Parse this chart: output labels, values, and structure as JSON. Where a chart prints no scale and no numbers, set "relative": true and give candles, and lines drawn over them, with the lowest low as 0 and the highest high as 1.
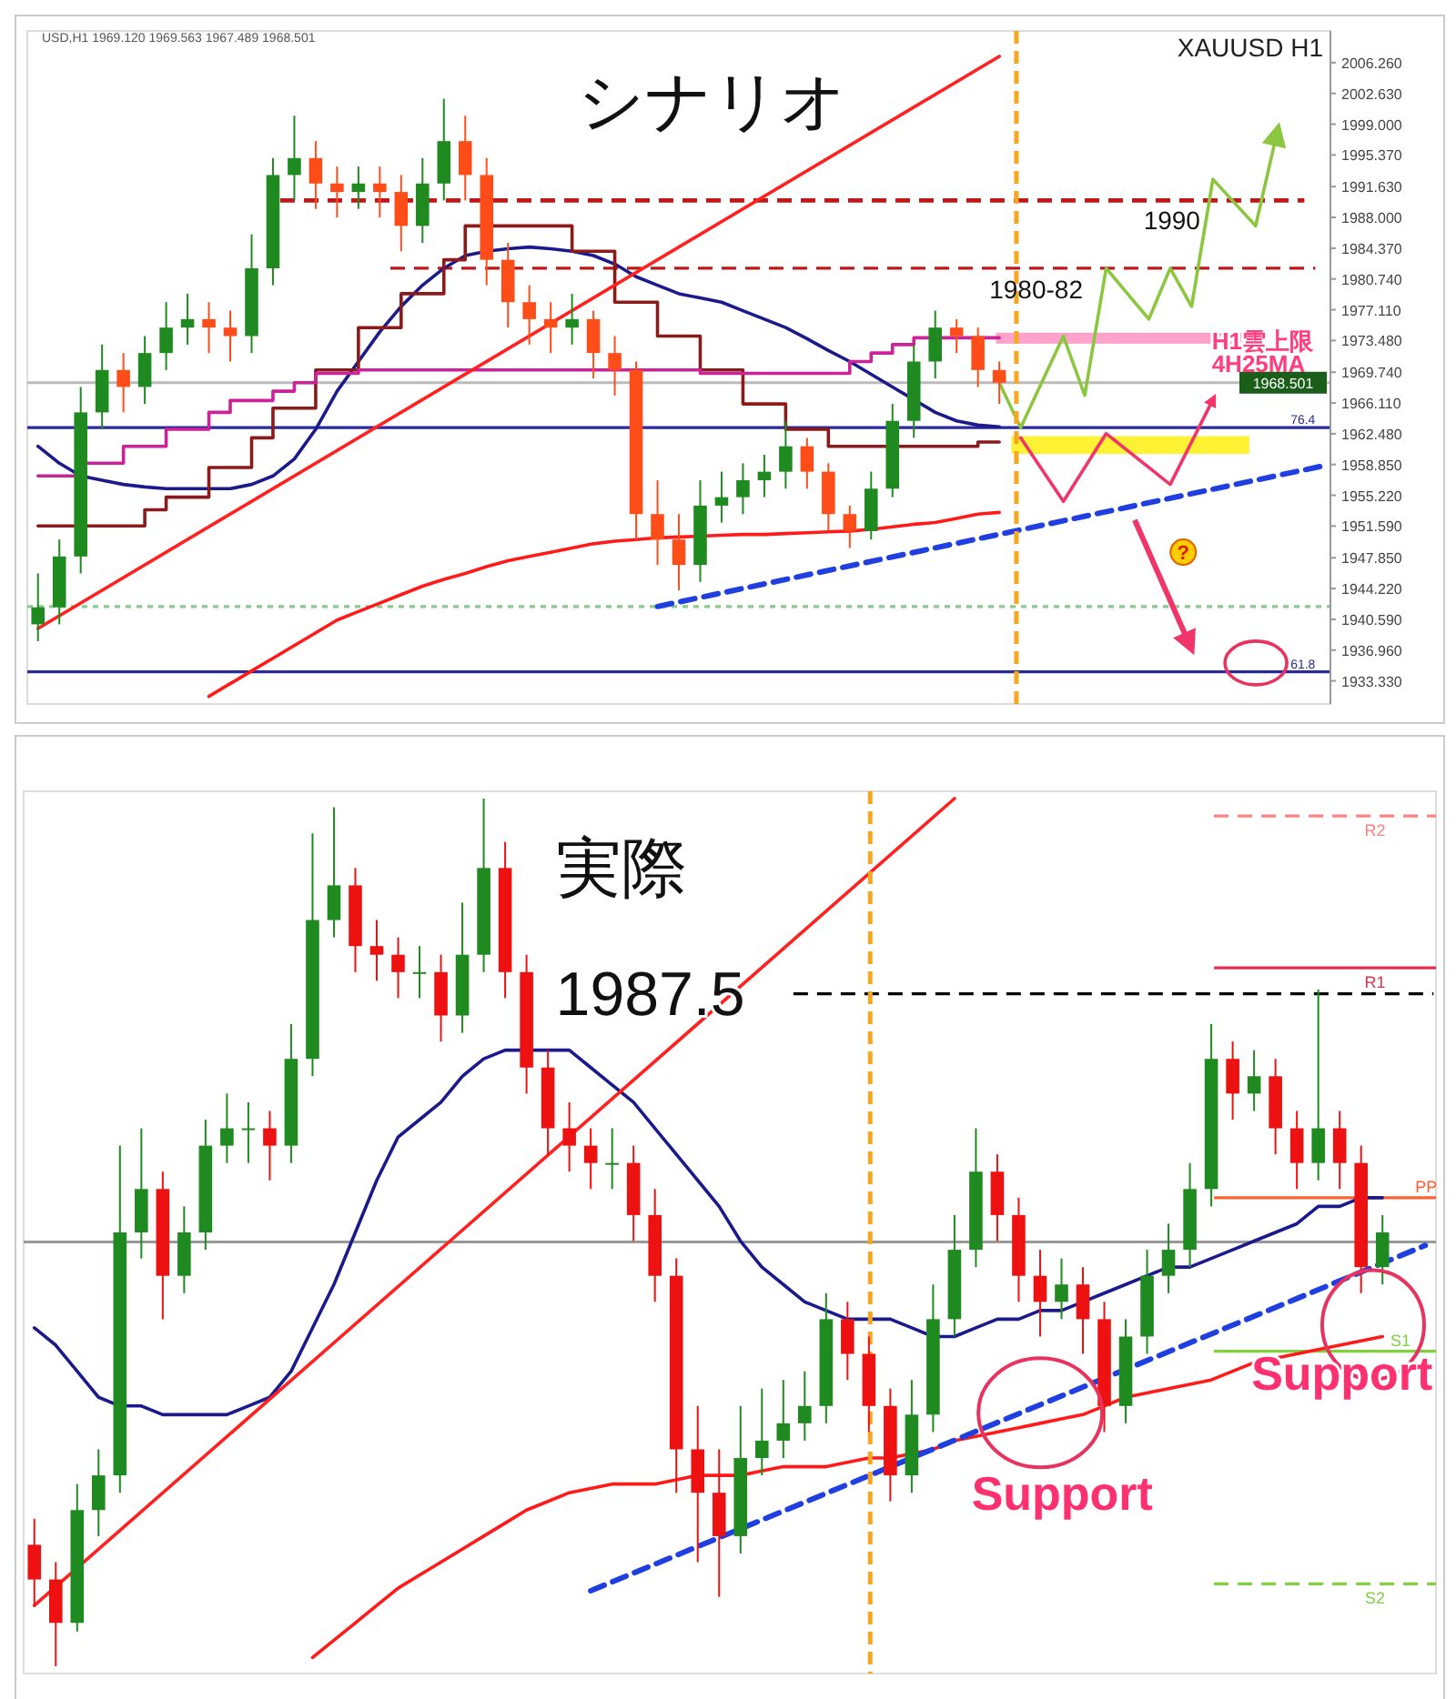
{
  "chart_data": [
    {
      "type": "candlestick",
      "title": "シナリオ",
      "subtitle": "XAUUSD H1",
      "categories": [
        null,
        null,
        null,
        null,
        null,
        null,
        null,
        null,
        null,
        null,
        null,
        null,
        null,
        null,
        null,
        null,
        null,
        null,
        null,
        null,
        null,
        null,
        null,
        null,
        null,
        null,
        null,
        null,
        null,
        null,
        null,
        null,
        null,
        null,
        null,
        null,
        null,
        null,
        null,
        null,
        null,
        null,
        null,
        null,
        null,
        null,
        null,
        null,
        null,
        null,
        null,
        null,
        null,
        null,
        null,
        null,
        null,
        null,
        null,
        null,
        null
      ],
      "ohlc": [
        [
          1940,
          1946,
          1938,
          1942
        ],
        [
          1942,
          1950,
          1940,
          1948
        ],
        [
          1948,
          1968,
          1946,
          1965
        ],
        [
          1965,
          1973,
          1963,
          1970
        ],
        [
          1970,
          1972,
          1965,
          1968
        ],
        [
          1968,
          1974,
          1966,
          1972
        ],
        [
          1972,
          1978,
          1970,
          1975
        ],
        [
          1975,
          1979,
          1973,
          1976
        ],
        [
          1976,
          1978,
          1972,
          1975
        ],
        [
          1975,
          1977,
          1971,
          1974
        ],
        [
          1974,
          1986,
          1972,
          1982
        ],
        [
          1982,
          1995,
          1980,
          1993
        ],
        [
          1993,
          2000,
          1990,
          1995
        ],
        [
          1995,
          1997,
          1989,
          1992
        ],
        [
          1992,
          1994,
          1988,
          1991
        ],
        [
          1991,
          1994,
          1989,
          1992
        ],
        [
          1992,
          1994,
          1988,
          1991
        ],
        [
          1991,
          1993,
          1984,
          1987
        ],
        [
          1987,
          1995,
          1985,
          1992
        ],
        [
          1992,
          2002,
          1990,
          1997
        ],
        [
          1997,
          2000,
          1990,
          1993
        ],
        [
          1993,
          1995,
          1980,
          1983
        ],
        [
          1983,
          1985,
          1975,
          1978
        ],
        [
          1978,
          1980,
          1973,
          1976
        ],
        [
          1976,
          1978,
          1972,
          1975
        ],
        [
          1975,
          1979,
          1973,
          1976
        ],
        [
          1976,
          1977,
          1969,
          1972
        ],
        [
          1972,
          1974,
          1967,
          1970
        ],
        [
          1970,
          1971,
          1950,
          1953
        ],
        [
          1953,
          1957,
          1947,
          1950
        ],
        [
          1950,
          1953,
          1944,
          1947
        ],
        [
          1947,
          1957,
          1945,
          1954
        ],
        [
          1954,
          1958,
          1952,
          1955
        ],
        [
          1955,
          1959,
          1953,
          1957
        ],
        [
          1957,
          1960,
          1955,
          1958
        ],
        [
          1958,
          1964,
          1956,
          1961
        ],
        [
          1961,
          1962,
          1956,
          1958
        ],
        [
          1958,
          1959,
          1951,
          1953
        ],
        [
          1953,
          1954,
          1949,
          1951
        ],
        [
          1951,
          1958,
          1950,
          1956
        ],
        [
          1956,
          1966,
          1955,
          1964
        ],
        [
          1964,
          1973,
          1962,
          1971
        ],
        [
          1971,
          1977,
          1969,
          1975
        ],
        [
          1975,
          1976,
          1972,
          1974
        ],
        [
          1974,
          1975,
          1968,
          1970
        ],
        [
          1970,
          1971,
          1966,
          1968.5
        ],
        null,
        null,
        null,
        null,
        null,
        null,
        null,
        null,
        null,
        null,
        null,
        null,
        null,
        null,
        null
      ],
      "ylim": [
        1930.6,
        2010
      ],
      "yticks": [
        {
          "value": 2006.26,
          "label": "2006.260"
        },
        {
          "value": 2002.63,
          "label": "2002.630"
        },
        {
          "value": 1999,
          "label": "1999.000"
        },
        {
          "value": 1995.37,
          "label": "1995.370"
        },
        {
          "value": 1991.63,
          "label": "1991.630"
        },
        {
          "value": 1988,
          "label": "1988.000"
        },
        {
          "value": 1984.37,
          "label": "1984.370"
        },
        {
          "value": 1980.74,
          "label": "1980.740"
        },
        {
          "value": 1977.11,
          "label": "1977.110"
        },
        {
          "value": 1973.48,
          "label": "1973.480"
        },
        {
          "value": 1969.74,
          "label": "1969.740"
        },
        {
          "value": 1966.11,
          "label": "1966.110"
        },
        {
          "value": 1962.48,
          "label": "1962.480"
        },
        {
          "value": 1958.85,
          "label": "1958.850"
        },
        {
          "value": 1955.22,
          "label": "1955.220"
        },
        {
          "value": 1951.59,
          "label": "1951.590"
        },
        {
          "value": 1947.85,
          "label": "1947.850"
        },
        {
          "value": 1944.22,
          "label": "1944.220"
        },
        {
          "value": 1940.59,
          "label": "1940.590"
        },
        {
          "value": 1936.96,
          "label": "1936.960"
        },
        {
          "value": 1933.33,
          "label": "1933.330"
        }
      ],
      "tick_labels": "y",
      "series": [
        {
          "type": "line",
          "color": "#ff1a1a",
          "values": [
            null,
            null,
            null,
            null,
            null,
            null,
            null,
            null,
            1931.5,
            1933,
            1934.5,
            1936,
            1937.5,
            1939,
            1940.5,
            1941.5,
            1942.5,
            1943.5,
            1944.5,
            1945.3,
            1946,
            1946.8,
            1947.5,
            1948,
            1948.5,
            1949,
            1949.5,
            1949.8,
            1950,
            1950.2,
            1950.3,
            1950.4,
            1950.5,
            1950.6,
            1950.6,
            1950.7,
            1950.8,
            1950.9,
            1951,
            1951.2,
            1951.5,
            1951.8,
            1952,
            1952.5,
            1953,
            1953.2,
            null,
            null,
            null,
            null,
            null,
            null,
            null,
            null,
            null,
            null,
            null,
            null,
            null,
            null,
            null
          ]
        },
        {
          "type": "line",
          "color": "#1a1a8c",
          "values": [
            1961,
            1959,
            1957.5,
            1957,
            1956.5,
            1956.2,
            1956,
            1956,
            1956,
            1956,
            1956.5,
            1957.5,
            1959.5,
            1963,
            1967.5,
            1971,
            1974.5,
            1977.5,
            1980,
            1982,
            1983.5,
            1984,
            1984.3,
            1984.5,
            1984.3,
            1984,
            1983.5,
            1982.5,
            1981,
            1980,
            1979,
            1978.5,
            1978,
            1977,
            1976,
            1975,
            1973.7,
            1972.3,
            1971,
            1969.5,
            1968,
            1966.5,
            1965,
            1964,
            1963.5,
            1963.3,
            null,
            null,
            null,
            null,
            null,
            null,
            null,
            null,
            null,
            null,
            null,
            null,
            null,
            null,
            null
          ]
        },
        {
          "type": "step",
          "color": "#8b1a1a",
          "values": [
            1951.6,
            1951.6,
            1951.6,
            1951.6,
            1951.6,
            1953.5,
            1955,
            1955,
            1958.5,
            1958.5,
            1962,
            1965.5,
            1965.5,
            1970,
            1970,
            1975,
            1975,
            1979,
            1979,
            1983,
            1987,
            1987,
            1987,
            1987,
            1987,
            1984,
            1984,
            1978,
            1978,
            1974,
            1974,
            1970,
            1970,
            1966,
            1966,
            1963,
            1963,
            1961,
            1961,
            1961,
            1961,
            1961,
            1961,
            1961,
            1961.5,
            1961.5,
            null,
            null,
            null,
            null,
            null,
            null,
            null,
            null,
            null,
            null,
            null,
            null,
            null,
            null,
            null
          ]
        },
        {
          "type": "step",
          "color": "#cc2299",
          "values": [
            1957.5,
            1957.5,
            1959,
            1959,
            1961,
            1961,
            1963,
            1963,
            1965,
            1966.4,
            1966.4,
            1967.5,
            1968.5,
            1969.6,
            1969.6,
            1970,
            1970,
            1970,
            1970,
            1970,
            1970,
            1970,
            1970,
            1970,
            1970,
            1970,
            1970,
            1970,
            1970,
            1970,
            1970,
            1969.6,
            1969.6,
            1969.6,
            1969.6,
            1969.6,
            1969.6,
            1969.6,
            1971,
            1972,
            1973,
            1973.8,
            1973.8,
            1973.8,
            1973.8,
            1973.8,
            null,
            null,
            null,
            null,
            null,
            null,
            null,
            null,
            null,
            null,
            null,
            null,
            null,
            null,
            null
          ]
        },
        {
          "type": "line",
          "color": "#1f3fe0",
          "line_style": "dashed",
          "values": [
            null,
            null,
            null,
            null,
            null,
            null,
            null,
            null,
            null,
            null,
            null,
            null,
            null,
            null,
            null,
            null,
            null,
            null,
            null,
            null,
            null,
            null,
            null,
            null,
            null,
            null,
            null,
            null,
            null,
            1942.1,
            null,
            null,
            null,
            null,
            null,
            null,
            null,
            null,
            null,
            null,
            null,
            null,
            null,
            null,
            null,
            null,
            null,
            null,
            null,
            null,
            null,
            null,
            null,
            null,
            null,
            null,
            null,
            null,
            null,
            null,
            1958.6
          ]
        },
        {
          "type": "line",
          "color": "#ff2020",
          "values": [
            1939.5,
            null,
            null,
            null,
            null,
            null,
            null,
            null,
            null,
            null,
            null,
            null,
            null,
            null,
            null,
            null,
            null,
            null,
            null,
            null,
            null,
            null,
            null,
            null,
            null,
            null,
            null,
            null,
            null,
            null,
            null,
            null,
            null,
            null,
            null,
            null,
            null,
            null,
            null,
            null,
            null,
            null,
            null,
            null,
            null,
            2007,
            null,
            null,
            null,
            null,
            null,
            null,
            null,
            null,
            null,
            null,
            null,
            null,
            null,
            null,
            null
          ]
        },
        {
          "type": "line",
          "color": "#8cc63f",
          "values": [
            null,
            null,
            null,
            null,
            null,
            null,
            null,
            null,
            null,
            null,
            null,
            null,
            null,
            null,
            null,
            null,
            null,
            null,
            null,
            null,
            null,
            null,
            null,
            null,
            null,
            null,
            null,
            null,
            null,
            null,
            null,
            null,
            null,
            null,
            null,
            null,
            null,
            null,
            null,
            null,
            null,
            null,
            null,
            null,
            null,
            1968.5,
            1963.2,
            null,
            1974,
            1967,
            1982,
            null,
            1976,
            1982,
            1977.5,
            1992.5,
            null,
            1987,
            1998,
            null,
            null
          ]
        },
        {
          "type": "line",
          "color": "#f0356b",
          "values": [
            null,
            null,
            null,
            null,
            null,
            null,
            null,
            null,
            null,
            null,
            null,
            null,
            null,
            null,
            null,
            null,
            null,
            null,
            null,
            null,
            null,
            null,
            null,
            null,
            null,
            null,
            null,
            null,
            null,
            null,
            null,
            null,
            null,
            null,
            null,
            null,
            null,
            null,
            null,
            null,
            null,
            null,
            null,
            null,
            null,
            null,
            1962,
            null,
            1954.5,
            null,
            1962.5,
            null,
            null,
            1956.5,
            null,
            1966.5,
            null,
            null,
            null,
            null,
            null
          ]
        }
      ],
      "ref_lines": [
        {
          "axis": "y",
          "value": 1990,
          "label": "1990",
          "color": "#c01818",
          "line_style": "dashed"
        },
        {
          "axis": "y",
          "value": 1982,
          "color": "#c01818",
          "line_style": "dashed"
        },
        {
          "axis": "y",
          "value": 1963.2,
          "color": "#2a2a9a"
        },
        {
          "axis": "y",
          "value": 1934.4,
          "color": "#2a2a9a"
        },
        {
          "axis": "y",
          "value": 1942.1,
          "color": "#88cc88",
          "line_style": "dotted"
        },
        {
          "axis": "y",
          "value": 1968.501,
          "label": "1968.501",
          "color": "#bbbbbb"
        }
      ],
      "bands": [
        {
          "axis": "y",
          "from": 1960.1,
          "to": 1962.2,
          "color": "#ffee00"
        },
        {
          "axis": "y",
          "from": 1973.1,
          "to": 1974.4,
          "label": "H1雲上限",
          "color": "#ff8cc0"
        }
      ],
      "annotations": [
        "4H25MA",
        "USD,H1 1969.120 1969.563 1967.489 1968.501",
        "1980-82",
        "76.4",
        "61.8",
        "?"
      ]
    },
    {
      "type": "candlestick",
      "title": "実際",
      "relative": true,
      "categories": [
        null,
        null,
        null,
        null,
        null,
        null,
        null,
        null,
        null,
        null,
        null,
        null,
        null,
        null,
        null,
        null,
        null,
        null,
        null,
        null,
        null,
        null,
        null,
        null,
        null,
        null,
        null,
        null,
        null,
        null,
        null,
        null,
        null,
        null,
        null,
        null,
        null,
        null,
        null,
        null,
        null,
        null,
        null,
        null,
        null,
        null,
        null,
        null,
        null,
        null,
        null,
        null,
        null,
        null,
        null,
        null,
        null,
        null,
        null,
        null,
        null,
        null,
        null,
        null,
        null,
        null
      ],
      "ohlc": [
        [
          0.14,
          0.17,
          0.07,
          0.1
        ],
        [
          0.1,
          0.12,
          0.0,
          0.05
        ],
        [
          0.05,
          0.21,
          0.04,
          0.18
        ],
        [
          0.18,
          0.25,
          0.15,
          0.22
        ],
        [
          0.22,
          0.6,
          0.2,
          0.5
        ],
        [
          0.5,
          0.62,
          0.47,
          0.55
        ],
        [
          0.55,
          0.57,
          0.4,
          0.45
        ],
        [
          0.45,
          0.53,
          0.43,
          0.5
        ],
        [
          0.5,
          0.63,
          0.48,
          0.6
        ],
        [
          0.6,
          0.66,
          0.58,
          0.62
        ],
        [
          0.62,
          0.65,
          0.58,
          0.62
        ],
        [
          0.62,
          0.64,
          0.56,
          0.6
        ],
        [
          0.6,
          0.74,
          0.58,
          0.7
        ],
        [
          0.7,
          0.96,
          0.68,
          0.86
        ],
        [
          0.86,
          0.99,
          0.84,
          0.9
        ],
        [
          0.9,
          0.92,
          0.8,
          0.83
        ],
        [
          0.83,
          0.86,
          0.79,
          0.82
        ],
        [
          0.82,
          0.84,
          0.77,
          0.8
        ],
        [
          0.8,
          0.83,
          0.77,
          0.8
        ],
        [
          0.8,
          0.82,
          0.72,
          0.75
        ],
        [
          0.75,
          0.88,
          0.73,
          0.82
        ],
        [
          0.82,
          1.0,
          0.8,
          0.92
        ],
        [
          0.92,
          0.95,
          0.77,
          0.8
        ],
        [
          0.8,
          0.82,
          0.66,
          0.69
        ],
        [
          0.69,
          0.71,
          0.59,
          0.62
        ],
        [
          0.62,
          0.65,
          0.57,
          0.6
        ],
        [
          0.6,
          0.62,
          0.55,
          0.58
        ],
        [
          0.58,
          0.62,
          0.55,
          0.58
        ],
        [
          0.58,
          0.6,
          0.49,
          0.52
        ],
        [
          0.52,
          0.55,
          0.42,
          0.45
        ],
        [
          0.45,
          0.47,
          0.2,
          0.25
        ],
        [
          0.25,
          0.3,
          0.12,
          0.2
        ],
        [
          0.2,
          0.25,
          0.08,
          0.15
        ],
        [
          0.15,
          0.3,
          0.13,
          0.24
        ],
        [
          0.24,
          0.32,
          0.22,
          0.26
        ],
        [
          0.26,
          0.33,
          0.24,
          0.28
        ],
        [
          0.28,
          0.34,
          0.26,
          0.3
        ],
        [
          0.3,
          0.43,
          0.28,
          0.4
        ],
        [
          0.4,
          0.42,
          0.33,
          0.36
        ],
        [
          0.36,
          0.38,
          0.27,
          0.3
        ],
        [
          0.3,
          0.32,
          0.19,
          0.22
        ],
        [
          0.22,
          0.33,
          0.2,
          0.29
        ],
        [
          0.29,
          0.44,
          0.27,
          0.4
        ],
        [
          0.4,
          0.52,
          0.38,
          0.48
        ],
        [
          0.48,
          0.62,
          0.46,
          0.57
        ],
        [
          0.57,
          0.59,
          0.49,
          0.52
        ],
        [
          0.52,
          0.54,
          0.42,
          0.45
        ],
        [
          0.45,
          0.48,
          0.38,
          0.42
        ],
        [
          0.42,
          0.47,
          0.4,
          0.44
        ],
        [
          0.44,
          0.46,
          0.36,
          0.4
        ],
        [
          0.4,
          0.42,
          0.27,
          0.3
        ],
        [
          0.3,
          0.4,
          0.28,
          0.38
        ],
        [
          0.38,
          0.48,
          0.36,
          0.45
        ],
        [
          0.45,
          0.51,
          0.43,
          0.48
        ],
        [
          0.48,
          0.58,
          0.46,
          0.55
        ],
        [
          0.55,
          0.74,
          0.53,
          0.7
        ],
        [
          0.7,
          0.72,
          0.63,
          0.66
        ],
        [
          0.66,
          0.71,
          0.64,
          0.68
        ],
        [
          0.68,
          0.7,
          0.59,
          0.62
        ],
        [
          0.62,
          0.64,
          0.55,
          0.58
        ],
        [
          0.58,
          0.78,
          0.56,
          0.62
        ],
        [
          0.62,
          0.64,
          0.55,
          0.58
        ],
        [
          0.58,
          0.6,
          0.43,
          0.46
        ],
        [
          0.46,
          0.52,
          0.44,
          0.5
        ],
        null,
        null
      ],
      "tick_labels": false,
      "series": [
        {
          "type": "line",
          "color": "#ff1a1a",
          "values": [
            null,
            null,
            null,
            null,
            null,
            null,
            null,
            null,
            null,
            null,
            null,
            null,
            null,
            0.01,
            0.03,
            0.05,
            0.07,
            0.09,
            0.105,
            0.12,
            0.135,
            0.15,
            0.165,
            0.18,
            0.19,
            0.2,
            0.205,
            0.21,
            0.21,
            0.21,
            0.215,
            0.22,
            0.22,
            0.22,
            0.225,
            0.23,
            0.23,
            0.23,
            0.235,
            0.24,
            0.24,
            0.245,
            0.25,
            0.26,
            0.265,
            0.27,
            0.275,
            0.28,
            0.285,
            0.29,
            0.3,
            0.31,
            0.315,
            0.32,
            0.325,
            0.33,
            0.34,
            0.35,
            0.355,
            0.36,
            0.365,
            0.37,
            0.375,
            0.38,
            null,
            null
          ]
        },
        {
          "type": "line",
          "color": "#1a1a8c",
          "values": [
            0.39,
            0.37,
            0.34,
            0.31,
            0.3,
            0.3,
            0.29,
            0.29,
            0.29,
            0.29,
            0.3,
            0.31,
            0.34,
            0.39,
            0.44,
            0.5,
            0.56,
            0.61,
            0.63,
            0.65,
            0.68,
            0.7,
            0.71,
            0.71,
            0.71,
            0.71,
            0.69,
            0.67,
            0.65,
            0.62,
            0.59,
            0.56,
            0.53,
            0.49,
            0.46,
            0.44,
            0.42,
            0.41,
            0.4,
            0.4,
            0.4,
            0.39,
            0.38,
            0.38,
            0.39,
            0.4,
            0.4,
            0.41,
            0.41,
            0.42,
            0.43,
            0.44,
            0.45,
            0.46,
            0.46,
            0.47,
            0.48,
            0.49,
            0.5,
            0.51,
            0.53,
            0.53,
            0.54,
            0.54,
            null,
            null
          ]
        },
        {
          "type": "line",
          "color": "#1f3fe0",
          "line_style": "dashed",
          "values": [
            null,
            null,
            null,
            null,
            null,
            null,
            null,
            null,
            null,
            null,
            null,
            null,
            null,
            null,
            null,
            null,
            null,
            null,
            null,
            null,
            null,
            null,
            null,
            null,
            null,
            null,
            0.087,
            null,
            null,
            null,
            null,
            null,
            null,
            null,
            null,
            null,
            null,
            null,
            null,
            null,
            null,
            null,
            null,
            null,
            null,
            null,
            null,
            null,
            null,
            null,
            null,
            null,
            null,
            null,
            null,
            null,
            null,
            null,
            null,
            null,
            null,
            null,
            null,
            null,
            null,
            0.485
          ]
        },
        {
          "type": "line",
          "color": "#ff2020",
          "values": [
            0.07,
            null,
            null,
            null,
            null,
            null,
            null,
            null,
            null,
            null,
            null,
            null,
            null,
            null,
            null,
            null,
            null,
            null,
            null,
            null,
            null,
            null,
            null,
            null,
            null,
            null,
            null,
            null,
            null,
            null,
            null,
            null,
            null,
            null,
            null,
            null,
            null,
            null,
            null,
            null,
            null,
            null,
            null,
            1.0,
            null,
            null,
            null,
            null,
            null,
            null,
            null,
            null,
            null,
            null,
            null,
            null,
            null,
            null,
            null,
            null,
            null,
            null,
            null,
            null,
            null,
            null
          ]
        }
      ],
      "ref_lines": [
        {
          "axis": "y",
          "value": 0.775,
          "color": "#000000",
          "line_style": "dashed"
        },
        {
          "axis": "y",
          "value": 0.98,
          "label": "R2",
          "color": "#ff8080",
          "line_style": "dashed"
        },
        {
          "axis": "y",
          "value": 0.805,
          "label": "R1",
          "color": "#e03050"
        },
        {
          "axis": "y",
          "value": 0.54,
          "label": "PP",
          "color": "#ff6030"
        },
        {
          "axis": "y",
          "value": 0.363,
          "label": "S1",
          "color": "#80d040"
        },
        {
          "axis": "y",
          "value": 0.095,
          "label": "S2",
          "color": "#80d040",
          "line_style": "dashed"
        },
        {
          "axis": "y",
          "value": 0.489,
          "color": "#999999"
        }
      ],
      "annotations": [
        "Support",
        "Support",
        "1987.5"
      ]
    }
  ]
}
